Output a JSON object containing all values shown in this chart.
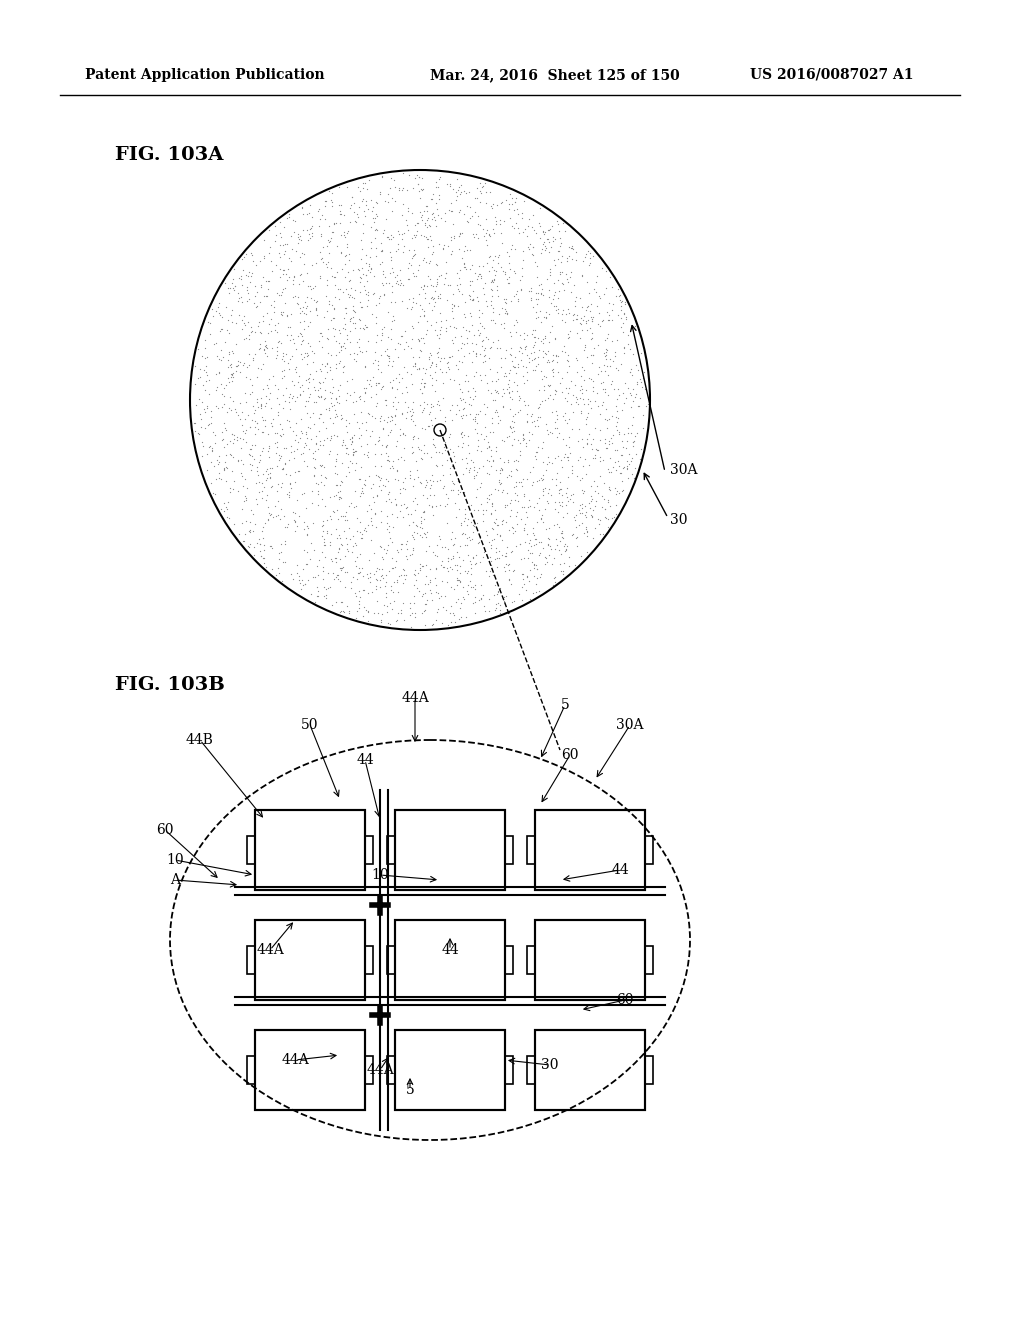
{
  "header_left": "Patent Application Publication",
  "header_mid": "Mar. 24, 2016  Sheet 125 of 150",
  "header_right": "US 2016/0087027 A1",
  "fig_a_label": "FIG. 103A",
  "fig_b_label": "FIG. 103B",
  "bg_color": "#ffffff",
  "dot_color": "#aaaaaa",
  "line_color": "#000000"
}
